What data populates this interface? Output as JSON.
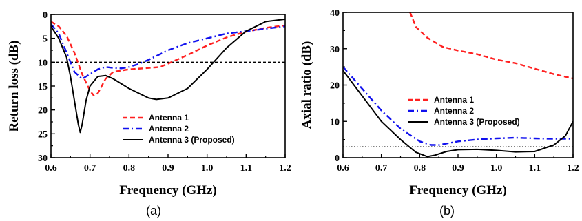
{
  "chart_data": [
    {
      "type": "line",
      "panel_label": "(a)",
      "xlabel": "Frequency (GHz)",
      "ylabel": "Return loss (dB)",
      "xlim": [
        0.6,
        1.2
      ],
      "ylim": [
        0,
        30
      ],
      "y_inverted": true,
      "xticks": [
        "0.6",
        "0.7",
        "0.8",
        "0.9",
        "1.0",
        "1.1",
        "1.2"
      ],
      "yticks": [
        "0",
        "5",
        "10",
        "15",
        "20",
        "25",
        "30"
      ],
      "legend_position": "lower-right",
      "reference_line": {
        "y": 10,
        "style": "dashed"
      },
      "series": [
        {
          "name": "Antenna 1",
          "color": "#ff2020",
          "dash": "dashed",
          "points": [
            [
              0.6,
              1.5
            ],
            [
              0.62,
              2.5
            ],
            [
              0.64,
              4.5
            ],
            [
              0.66,
              8
            ],
            [
              0.68,
              12.5
            ],
            [
              0.7,
              16
            ],
            [
              0.71,
              17
            ],
            [
              0.72,
              16.5
            ],
            [
              0.74,
              13.5
            ],
            [
              0.76,
              12
            ],
            [
              0.8,
              11.5
            ],
            [
              0.85,
              11.2
            ],
            [
              0.88,
              11
            ],
            [
              0.9,
              10.3
            ],
            [
              0.95,
              8.5
            ],
            [
              1.0,
              6.5
            ],
            [
              1.05,
              4.8
            ],
            [
              1.1,
              3.6
            ],
            [
              1.15,
              2.8
            ],
            [
              1.2,
              2.3
            ]
          ]
        },
        {
          "name": "Antenna 2",
          "color": "#1010ee",
          "dash": "dashdot",
          "points": [
            [
              0.6,
              2
            ],
            [
              0.62,
              4
            ],
            [
              0.64,
              8
            ],
            [
              0.66,
              12
            ],
            [
              0.68,
              13.5
            ],
            [
              0.7,
              12.5
            ],
            [
              0.72,
              11.5
            ],
            [
              0.74,
              11
            ],
            [
              0.76,
              11.2
            ],
            [
              0.78,
              11.3
            ],
            [
              0.8,
              11
            ],
            [
              0.82,
              10.5
            ],
            [
              0.85,
              9.5
            ],
            [
              0.9,
              7.5
            ],
            [
              0.95,
              6
            ],
            [
              1.0,
              5
            ],
            [
              1.05,
              4
            ],
            [
              1.1,
              3.5
            ],
            [
              1.15,
              3
            ],
            [
              1.2,
              2.5
            ]
          ]
        },
        {
          "name": "Antenna 3 (Proposed)",
          "color": "#000000",
          "dash": "solid",
          "points": [
            [
              0.6,
              2.5
            ],
            [
              0.62,
              5
            ],
            [
              0.64,
              9
            ],
            [
              0.65,
              13
            ],
            [
              0.66,
              18
            ],
            [
              0.67,
              23
            ],
            [
              0.675,
              24.7
            ],
            [
              0.68,
              23
            ],
            [
              0.69,
              18
            ],
            [
              0.7,
              15
            ],
            [
              0.72,
              13
            ],
            [
              0.74,
              12.8
            ],
            [
              0.76,
              13.5
            ],
            [
              0.8,
              15.5
            ],
            [
              0.85,
              17.5
            ],
            [
              0.87,
              17.8
            ],
            [
              0.9,
              17.5
            ],
            [
              0.95,
              15.5
            ],
            [
              1.0,
              11.5
            ],
            [
              1.05,
              7
            ],
            [
              1.1,
              3.5
            ],
            [
              1.15,
              1.5
            ],
            [
              1.2,
              1
            ]
          ]
        }
      ]
    },
    {
      "type": "line",
      "panel_label": "(b)",
      "xlabel": "Frequency (GHz)",
      "ylabel": "Axial ratio (dB)",
      "xlim": [
        0.6,
        1.2
      ],
      "ylim": [
        0,
        40
      ],
      "y_inverted": false,
      "xticks": [
        "0.6",
        "0.7",
        "0.8",
        "0.9",
        "1.0",
        "1.1",
        "1.2"
      ],
      "yticks": [
        "0",
        "10",
        "20",
        "30",
        "40"
      ],
      "legend_position": "middle-right",
      "reference_line": {
        "y": 3,
        "style": "dotted"
      },
      "series": [
        {
          "name": "Antenna 1",
          "color": "#ff2020",
          "dash": "dashed",
          "points": [
            [
              0.775,
              40
            ],
            [
              0.79,
              36
            ],
            [
              0.82,
              33
            ],
            [
              0.86,
              30.5
            ],
            [
              0.9,
              29.5
            ],
            [
              0.95,
              28.5
            ],
            [
              1.0,
              27
            ],
            [
              1.05,
              26
            ],
            [
              1.1,
              24.5
            ],
            [
              1.15,
              23
            ],
            [
              1.2,
              21.8
            ]
          ]
        },
        {
          "name": "Antenna 2",
          "color": "#1010ee",
          "dash": "dashdot",
          "points": [
            [
              0.6,
              25
            ],
            [
              0.65,
              19
            ],
            [
              0.7,
              13
            ],
            [
              0.75,
              8
            ],
            [
              0.8,
              4.5
            ],
            [
              0.83,
              3.5
            ],
            [
              0.85,
              3.5
            ],
            [
              0.9,
              4.5
            ],
            [
              0.95,
              5
            ],
            [
              1.0,
              5.3
            ],
            [
              1.05,
              5.5
            ],
            [
              1.1,
              5.3
            ],
            [
              1.15,
              5.2
            ],
            [
              1.2,
              5.2
            ]
          ]
        },
        {
          "name": "Antenna 3 (Proposed)",
          "color": "#000000",
          "dash": "solid",
          "points": [
            [
              0.6,
              24
            ],
            [
              0.65,
              17
            ],
            [
              0.7,
              10
            ],
            [
              0.75,
              5
            ],
            [
              0.79,
              1.5
            ],
            [
              0.82,
              0.3
            ],
            [
              0.84,
              0.7
            ],
            [
              0.87,
              1.7
            ],
            [
              0.9,
              2.2
            ],
            [
              0.95,
              2.3
            ],
            [
              1.0,
              2
            ],
            [
              1.05,
              1.6
            ],
            [
              1.1,
              1.7
            ],
            [
              1.15,
              3.5
            ],
            [
              1.18,
              6
            ],
            [
              1.2,
              10
            ]
          ]
        }
      ]
    }
  ]
}
